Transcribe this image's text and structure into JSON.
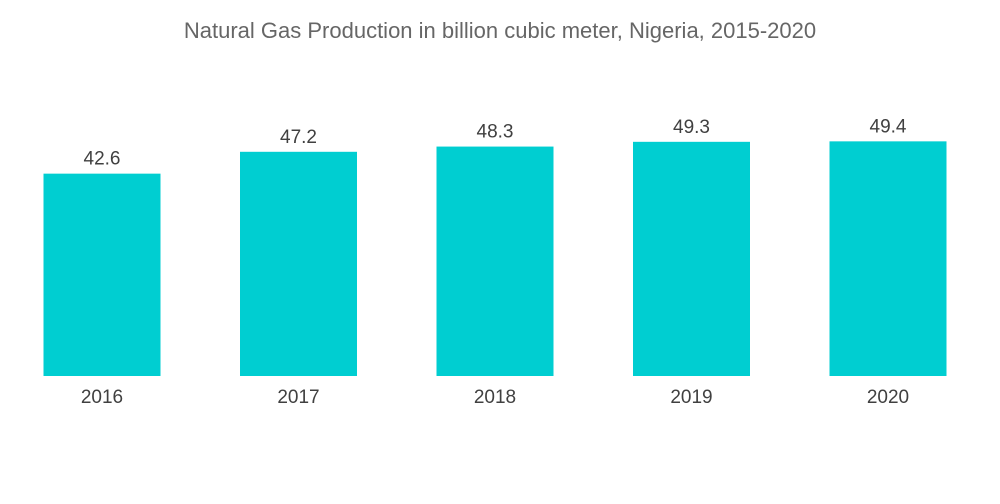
{
  "chart_data": {
    "type": "bar",
    "title": "Natural Gas Production in billion cubic meter, Nigeria, 2015-2020",
    "categories": [
      "2016",
      "2017",
      "2018",
      "2019",
      "2020"
    ],
    "values": [
      42.6,
      47.2,
      48.3,
      49.3,
      49.4
    ],
    "value_labels": [
      "42.6",
      "47.2",
      "48.3",
      "49.3",
      "49.4"
    ],
    "xlabel": "",
    "ylabel": "",
    "ylim": [
      0,
      55
    ],
    "grid": false,
    "legend": "none",
    "bar_color": "#00CED1"
  }
}
